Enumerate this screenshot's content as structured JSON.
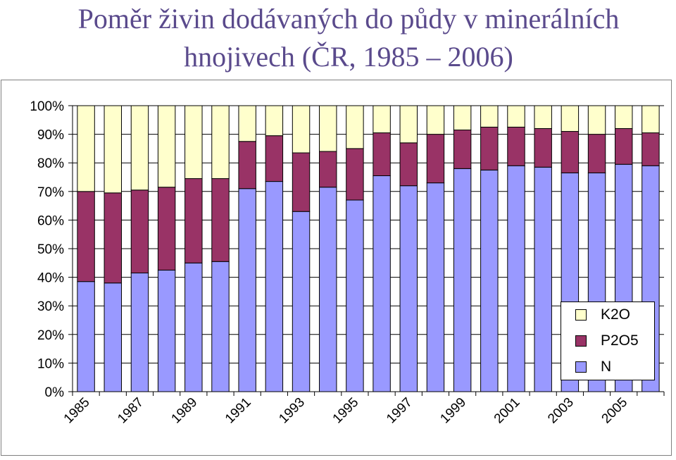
{
  "title_line1": "Poměr živin dodávaných do půdy v minerálních",
  "title_line2": "hnojivech (ČR, 1985 – 2006)",
  "chart_data": {
    "type": "bar",
    "stacked": true,
    "normalized": true,
    "categories": [
      "1985",
      "1986",
      "1987",
      "1988",
      "1989",
      "1990",
      "1991",
      "1992",
      "1993",
      "1994",
      "1995",
      "1996",
      "1997",
      "1998",
      "1999",
      "2000",
      "2001",
      "2002",
      "2003",
      "2004",
      "2005",
      "2006"
    ],
    "x_tick_labels": [
      "1985",
      "1987",
      "1989",
      "1991",
      "1993",
      "1995",
      "1997",
      "1999",
      "2001",
      "2003",
      "2005"
    ],
    "y_tick_labels": [
      "0%",
      "10%",
      "20%",
      "30%",
      "40%",
      "50%",
      "60%",
      "70%",
      "80%",
      "90%",
      "100%"
    ],
    "ylim": [
      0,
      100
    ],
    "legend_position": "right",
    "series": [
      {
        "name": "N",
        "color": "#9999ff",
        "values": [
          38.5,
          38,
          41.5,
          42.5,
          45,
          45.5,
          71,
          73.5,
          63,
          71.5,
          67,
          75.5,
          72,
          73,
          78,
          77.5,
          79,
          78.5,
          76.5,
          76.5,
          79.5,
          79
        ]
      },
      {
        "name": "P2O5",
        "color": "#993366",
        "values": [
          31.5,
          31.5,
          29,
          29,
          29.5,
          29,
          16.5,
          16,
          20.5,
          12.5,
          18,
          15,
          15,
          17,
          13.5,
          15,
          13.5,
          13.5,
          14.5,
          13.5,
          12.5,
          11.5
        ]
      },
      {
        "name": "K2O",
        "color": "#ffffcc",
        "values": [
          30,
          30.5,
          29.5,
          28.5,
          25.5,
          25.5,
          12.5,
          10.5,
          16.5,
          16,
          15,
          9.5,
          13,
          10,
          8.5,
          7.5,
          7.5,
          8,
          9,
          10,
          8,
          9.5
        ]
      }
    ],
    "legend": [
      "K2O",
      "P2O5",
      "N"
    ]
  }
}
